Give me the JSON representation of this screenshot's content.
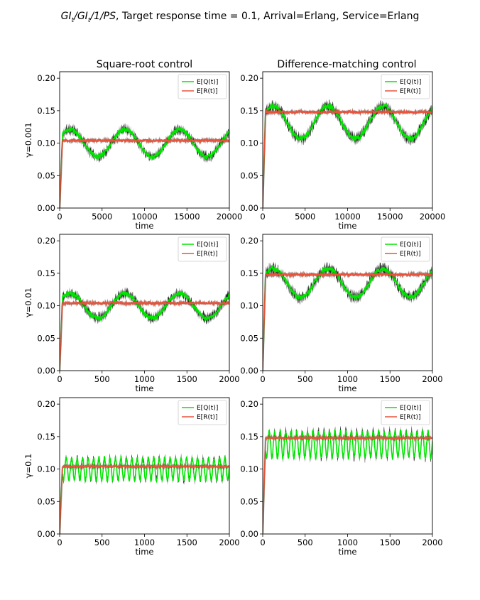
{
  "figure": {
    "title_prefix": "GI",
    "title_sub1": "t",
    "title_sep1": "/GI",
    "title_sub2": "t",
    "title_mid": "/1/PS",
    "title_suffix": ", Target response time = 0.1, Arrival=Erlang, Service=Erlang",
    "col_titles": [
      "Square-root control",
      "Difference-matching control"
    ],
    "row_labels": [
      "γ=0.001",
      "γ=0.01",
      "γ=0.1"
    ]
  },
  "colors": {
    "q": "#00e600",
    "q_noise": "#000000",
    "r": "#e8543b"
  },
  "chart_data": [
    {
      "type": "line",
      "row": 0,
      "col": 0,
      "xlabel": "time",
      "xlim": [
        0,
        20000
      ],
      "ylim": [
        0,
        0.21
      ],
      "xticks": [
        0,
        5000,
        10000,
        15000,
        20000
      ],
      "yticks": [
        0.0,
        0.05,
        0.1,
        0.15,
        0.2
      ],
      "legend": {
        "entries": [
          "E[Q(t)]",
          "E[R(t)]"
        ],
        "loc": "upper right"
      },
      "series": [
        {
          "name": "E[Q(t)]",
          "shape": "sinusoid",
          "mean": 0.1,
          "amplitude": 0.021,
          "cycles": 3.1,
          "noise": 0.008
        },
        {
          "name": "E[R(t)]",
          "shape": "flat",
          "level": 0.104,
          "noise": 0.002
        }
      ]
    },
    {
      "type": "line",
      "row": 0,
      "col": 1,
      "xlabel": "time",
      "xlim": [
        0,
        20000
      ],
      "ylim": [
        0,
        0.21
      ],
      "xticks": [
        0,
        5000,
        10000,
        15000,
        20000
      ],
      "yticks": [
        0.0,
        0.05,
        0.1,
        0.15,
        0.2
      ],
      "legend": {
        "entries": [
          "E[Q(t)]",
          "E[R(t)]"
        ],
        "loc": "upper right"
      },
      "series": [
        {
          "name": "E[Q(t)]",
          "shape": "sinusoid",
          "mean": 0.132,
          "amplitude": 0.025,
          "cycles": 3.1,
          "noise": 0.009
        },
        {
          "name": "E[R(t)]",
          "shape": "flat",
          "level": 0.148,
          "noise": 0.002
        }
      ]
    },
    {
      "type": "line",
      "row": 1,
      "col": 0,
      "xlabel": "time",
      "xlim": [
        0,
        2000
      ],
      "ylim": [
        0,
        0.21
      ],
      "xticks": [
        0,
        500,
        1000,
        1500,
        2000
      ],
      "yticks": [
        0.0,
        0.05,
        0.1,
        0.15,
        0.2
      ],
      "legend": {
        "entries": [
          "E[Q(t)]",
          "E[R(t)]"
        ],
        "loc": "upper right"
      },
      "series": [
        {
          "name": "E[Q(t)]",
          "shape": "sinusoid",
          "mean": 0.1,
          "amplitude": 0.019,
          "cycles": 3.1,
          "noise": 0.008
        },
        {
          "name": "E[R(t)]",
          "shape": "flat",
          "level": 0.104,
          "noise": 0.002
        }
      ]
    },
    {
      "type": "line",
      "row": 1,
      "col": 1,
      "xlabel": "time",
      "xlim": [
        0,
        2000
      ],
      "ylim": [
        0,
        0.21
      ],
      "xticks": [
        0,
        500,
        1000,
        1500,
        2000
      ],
      "yticks": [
        0.0,
        0.05,
        0.1,
        0.15,
        0.2
      ],
      "legend": {
        "entries": [
          "E[Q(t)]",
          "E[R(t)]"
        ],
        "loc": "upper right"
      },
      "series": [
        {
          "name": "E[Q(t)]",
          "shape": "sinusoid",
          "mean": 0.135,
          "amplitude": 0.022,
          "cycles": 3.1,
          "noise": 0.009
        },
        {
          "name": "E[R(t)]",
          "shape": "flat",
          "level": 0.148,
          "noise": 0.002
        }
      ]
    },
    {
      "type": "line",
      "row": 2,
      "col": 0,
      "xlabel": "time",
      "xlim": [
        0,
        2000
      ],
      "ylim": [
        0,
        0.21
      ],
      "xticks": [
        0,
        500,
        1000,
        1500,
        2000
      ],
      "yticks": [
        0.0,
        0.05,
        0.1,
        0.15,
        0.2
      ],
      "legend": {
        "entries": [
          "E[Q(t)]",
          "E[R(t)]"
        ],
        "loc": "upper right"
      },
      "series": [
        {
          "name": "E[Q(t)]",
          "shape": "sinusoid",
          "mean": 0.1,
          "amplitude": 0.017,
          "cycles": 31,
          "noise": 0.006
        },
        {
          "name": "E[R(t)]",
          "shape": "flat",
          "level": 0.104,
          "noise": 0.0015
        }
      ]
    },
    {
      "type": "line",
      "row": 2,
      "col": 1,
      "xlabel": "time",
      "xlim": [
        0,
        2000
      ],
      "ylim": [
        0,
        0.21
      ],
      "xticks": [
        0,
        500,
        1000,
        1500,
        2000
      ],
      "yticks": [
        0.0,
        0.05,
        0.1,
        0.15,
        0.2
      ],
      "legend": {
        "entries": [
          "E[Q(t)]",
          "E[R(t)]"
        ],
        "loc": "upper right"
      },
      "series": [
        {
          "name": "E[Q(t)]",
          "shape": "sinusoid",
          "mean": 0.138,
          "amplitude": 0.02,
          "cycles": 31,
          "noise": 0.007
        },
        {
          "name": "E[R(t)]",
          "shape": "flat",
          "level": 0.148,
          "noise": 0.0015
        }
      ]
    }
  ]
}
